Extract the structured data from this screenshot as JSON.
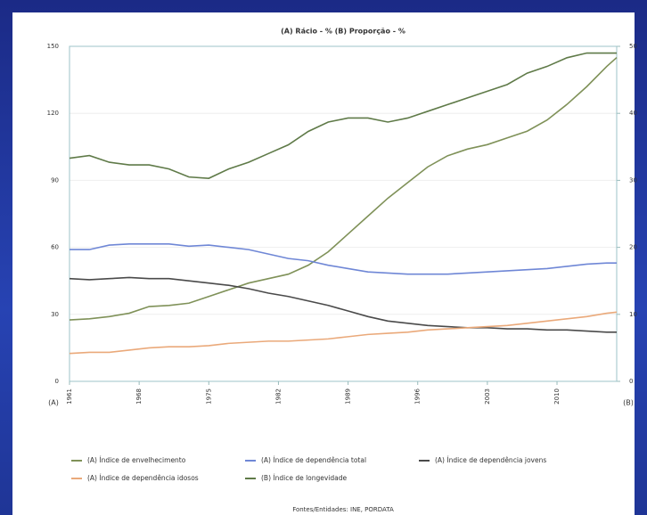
{
  "chart_data": {
    "type": "line",
    "title": "(A) Rácio - %     (B) Proporção - %",
    "left_axis_label": "(A)",
    "right_axis_label": "(B)",
    "source": "Fontes/Entidades: INE, PORDATA",
    "x": [
      1961,
      1963,
      1965,
      1967,
      1969,
      1971,
      1973,
      1975,
      1977,
      1979,
      1981,
      1983,
      1985,
      1987,
      1989,
      1991,
      1993,
      1995,
      1997,
      1999,
      2001,
      2003,
      2005,
      2007,
      2009,
      2011,
      2013,
      2015,
      2016
    ],
    "xlim": [
      1961,
      2016
    ],
    "xticks": [
      1961,
      1968,
      1975,
      1982,
      1989,
      1996,
      2003,
      2010
    ],
    "ylim": [
      0,
      150
    ],
    "yticks": [
      0,
      30,
      60,
      90,
      120,
      150
    ],
    "y2lim": [
      0,
      50
    ],
    "y2ticks": [
      0,
      10,
      20,
      30,
      40,
      50
    ],
    "grid": true,
    "series": [
      {
        "name": "(A) Índice de envelhecimento",
        "color": "#7f9158",
        "values": [
          27.5,
          28,
          29,
          30.5,
          33.5,
          34,
          35,
          38,
          41,
          44,
          46,
          48,
          52,
          58,
          66,
          74,
          82,
          89,
          96,
          101,
          104,
          106,
          109,
          112,
          117,
          124,
          132,
          141,
          145
        ]
      },
      {
        "name": "(A) Índice de dependência total",
        "color": "#6f87d6",
        "values": [
          59,
          59,
          61,
          61.5,
          61.5,
          61.5,
          60.5,
          61,
          60,
          59,
          57,
          55,
          54,
          52,
          50.5,
          49,
          48.5,
          48,
          48,
          48,
          48.5,
          49,
          49.5,
          50,
          50.5,
          51.5,
          52.5,
          53,
          53
        ]
      },
      {
        "name": "(A) Índice de dependência jovens",
        "color": "#4a4a4a",
        "values": [
          46,
          45.5,
          46,
          46.5,
          46,
          46,
          45,
          44,
          43,
          41.5,
          39.5,
          38,
          36,
          34,
          31.5,
          29,
          27,
          26,
          25,
          24.5,
          24,
          24,
          23.5,
          23.5,
          23,
          23,
          22.5,
          22,
          22
        ]
      },
      {
        "name": "(A) Índice de dependência idosos",
        "color": "#eaa97a",
        "values": [
          12.5,
          13,
          13,
          14,
          15,
          15.5,
          15.5,
          16,
          17,
          17.5,
          18,
          18,
          18.5,
          19,
          20,
          21,
          21.5,
          22,
          23,
          23.5,
          24,
          24.5,
          25,
          26,
          27,
          28,
          29,
          30.5,
          31
        ]
      },
      {
        "name": "(B) Índice de longevidade",
        "color": "#5f7a48",
        "axis": "y2",
        "values": [
          33.3,
          33.7,
          32.7,
          32.3,
          32.3,
          31.7,
          30.5,
          30.3,
          31.7,
          32.7,
          34,
          35.3,
          37.3,
          38.7,
          39.3,
          39.3,
          38.7,
          39.3,
          40.3,
          41.3,
          42.3,
          43.3,
          44.3,
          46,
          47,
          48.3,
          49,
          49,
          49
        ]
      }
    ]
  }
}
